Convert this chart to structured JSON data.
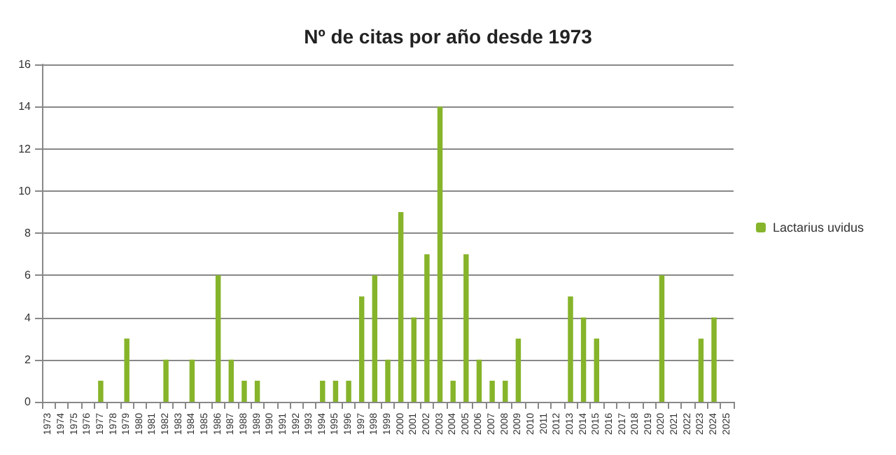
{
  "chart_data": {
    "type": "bar",
    "title": "Nº de citas por año desde 1973",
    "categories": [
      "1973",
      "1974",
      "1975",
      "1976",
      "1977",
      "1978",
      "1979",
      "1980",
      "1981",
      "1982",
      "1983",
      "1984",
      "1985",
      "1986",
      "1987",
      "1988",
      "1989",
      "1990",
      "1991",
      "1992",
      "1993",
      "1994",
      "1995",
      "1996",
      "1997",
      "1998",
      "1999",
      "2000",
      "2001",
      "2002",
      "2003",
      "2004",
      "2005",
      "2006",
      "2007",
      "2008",
      "2009",
      "2010",
      "2011",
      "2012",
      "2013",
      "2014",
      "2015",
      "2016",
      "2017",
      "2018",
      "2019",
      "2020",
      "2021",
      "2022",
      "2023",
      "2024",
      "2025"
    ],
    "series": [
      {
        "name": "Lactarius uvidus",
        "color": "#86b42a",
        "values": [
          0,
          0,
          0,
          0,
          1,
          0,
          3,
          0,
          0,
          2,
          0,
          2,
          0,
          6,
          2,
          1,
          1,
          0,
          0,
          0,
          0,
          1,
          1,
          1,
          5,
          6,
          2,
          9,
          4,
          7,
          14,
          1,
          7,
          2,
          1,
          1,
          3,
          0,
          0,
          0,
          5,
          4,
          3,
          0,
          0,
          0,
          0,
          6,
          0,
          0,
          3,
          4,
          0
        ]
      }
    ],
    "ylim": [
      0,
      16
    ],
    "yticks": [
      0,
      2,
      4,
      6,
      8,
      10,
      12,
      14,
      16
    ],
    "grid": "y",
    "legend": "right"
  }
}
